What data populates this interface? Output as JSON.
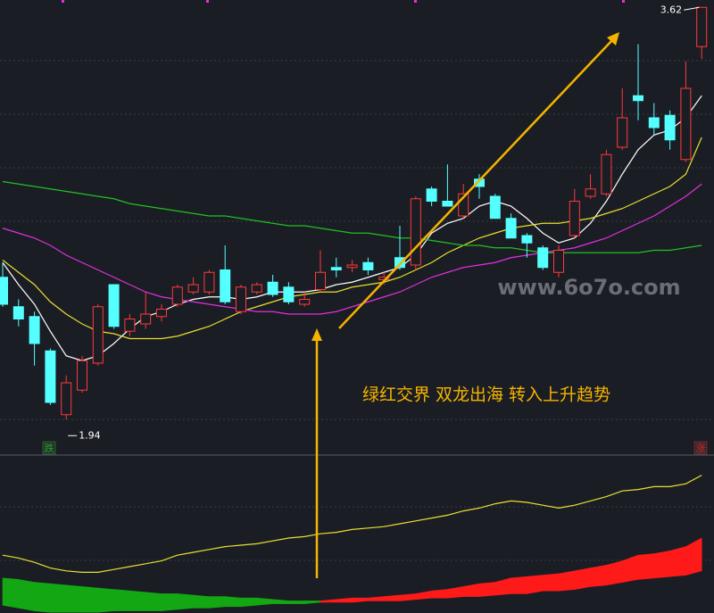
{
  "chart_data": [
    {
      "type": "candlestick",
      "ylim": [
        1.8,
        3.65
      ],
      "up_color": "#ff3a3a",
      "down_color": "#54ffff",
      "open": [
        2.52,
        2.4,
        2.36,
        2.22,
        1.96,
        2.06,
        2.17,
        2.49,
        2.3,
        2.33,
        2.36,
        2.41,
        2.46,
        2.46,
        2.55,
        2.38,
        2.46,
        2.5,
        2.48,
        2.41,
        2.47,
        2.56,
        2.56,
        2.58,
        2.51,
        2.6,
        2.57,
        2.88,
        2.83,
        2.77,
        2.92,
        2.85,
        2.76,
        2.69,
        2.64,
        2.54,
        2.69,
        2.85,
        2.86,
        3.05,
        3.26,
        3.17,
        3.18,
        3.0,
        3.46
      ],
      "high": [
        2.58,
        2.43,
        2.38,
        2.23,
        2.12,
        2.2,
        2.41,
        2.49,
        2.37,
        2.46,
        2.41,
        2.49,
        2.52,
        2.55,
        2.65,
        2.49,
        2.5,
        2.53,
        2.5,
        2.46,
        2.63,
        2.6,
        2.59,
        2.6,
        2.54,
        2.73,
        2.85,
        2.89,
        2.98,
        2.9,
        2.94,
        2.86,
        2.78,
        2.7,
        2.65,
        2.65,
        2.88,
        2.94,
        3.04,
        3.29,
        3.47,
        3.23,
        3.2,
        3.4,
        3.62
      ],
      "low": [
        2.4,
        2.32,
        2.16,
        2.0,
        1.94,
        2.05,
        2.16,
        2.31,
        2.28,
        2.31,
        2.34,
        2.4,
        2.45,
        2.45,
        2.41,
        2.37,
        2.45,
        2.44,
        2.41,
        2.4,
        2.46,
        2.52,
        2.54,
        2.53,
        2.49,
        2.55,
        2.55,
        2.81,
        2.81,
        2.76,
        2.84,
        2.76,
        2.68,
        2.6,
        2.55,
        2.52,
        2.68,
        2.84,
        2.85,
        3.04,
        3.16,
        3.1,
        3.04,
        2.99,
        3.41
      ],
      "close": [
        2.41,
        2.35,
        2.25,
        2.01,
        2.09,
        2.18,
        2.4,
        2.32,
        2.35,
        2.37,
        2.39,
        2.48,
        2.49,
        2.54,
        2.42,
        2.48,
        2.49,
        2.45,
        2.42,
        2.43,
        2.54,
        2.55,
        2.57,
        2.55,
        2.52,
        2.56,
        2.84,
        2.83,
        2.81,
        2.86,
        2.89,
        2.76,
        2.68,
        2.66,
        2.56,
        2.63,
        2.83,
        2.88,
        3.02,
        3.17,
        3.24,
        3.13,
        3.08,
        3.29,
        3.62
      ],
      "high_index": 44,
      "low_index": 4,
      "series": [
        {
          "color": "#ffffff",
          "values": [
            2.58,
            2.49,
            2.41,
            2.3,
            2.2,
            2.18,
            2.2,
            2.25,
            2.31,
            2.36,
            2.38,
            2.41,
            2.43,
            2.44,
            2.44,
            2.43,
            2.44,
            2.46,
            2.46,
            2.46,
            2.47,
            2.49,
            2.5,
            2.52,
            2.54,
            2.56,
            2.61,
            2.7,
            2.74,
            2.76,
            2.81,
            2.83,
            2.81,
            2.76,
            2.7,
            2.66,
            2.68,
            2.74,
            2.83,
            2.94,
            3.04,
            3.1,
            3.12,
            3.17,
            3.26
          ]
        },
        {
          "color": "#e8e030",
          "values": [
            2.59,
            2.54,
            2.49,
            2.42,
            2.37,
            2.33,
            2.3,
            2.29,
            2.27,
            2.27,
            2.27,
            2.28,
            2.3,
            2.32,
            2.35,
            2.38,
            2.4,
            2.42,
            2.44,
            2.45,
            2.46,
            2.46,
            2.48,
            2.49,
            2.5,
            2.52,
            2.55,
            2.58,
            2.62,
            2.65,
            2.68,
            2.7,
            2.72,
            2.73,
            2.74,
            2.74,
            2.75,
            2.76,
            2.78,
            2.8,
            2.83,
            2.86,
            2.89,
            2.94,
            3.09
          ]
        },
        {
          "color": "#e030e0",
          "values": [
            2.72,
            2.7,
            2.68,
            2.65,
            2.61,
            2.58,
            2.55,
            2.52,
            2.49,
            2.46,
            2.44,
            2.43,
            2.42,
            2.41,
            2.4,
            2.39,
            2.38,
            2.38,
            2.37,
            2.37,
            2.37,
            2.38,
            2.4,
            2.42,
            2.44,
            2.46,
            2.49,
            2.52,
            2.54,
            2.56,
            2.57,
            2.58,
            2.6,
            2.61,
            2.62,
            2.63,
            2.64,
            2.66,
            2.68,
            2.71,
            2.74,
            2.77,
            2.81,
            2.85,
            2.9
          ]
        },
        {
          "color": "#22c022",
          "values": [
            2.91,
            2.9,
            2.89,
            2.88,
            2.87,
            2.86,
            2.85,
            2.84,
            2.82,
            2.81,
            2.8,
            2.79,
            2.78,
            2.77,
            2.77,
            2.76,
            2.75,
            2.74,
            2.73,
            2.73,
            2.72,
            2.71,
            2.7,
            2.7,
            2.69,
            2.68,
            2.68,
            2.67,
            2.66,
            2.65,
            2.65,
            2.64,
            2.64,
            2.63,
            2.62,
            2.62,
            2.62,
            2.62,
            2.62,
            2.62,
            2.62,
            2.63,
            2.63,
            2.64,
            2.65
          ]
        }
      ],
      "badges": [
        {
          "text": "跌",
          "color": "#1fa81f"
        },
        {
          "text": "涨",
          "color": "#e02020"
        }
      ],
      "annotation": "绿红交界 双龙出海 转入上升趋势",
      "watermark": "www.6o7o.com"
    },
    {
      "type": "indicator",
      "ylim": [
        -8,
        100
      ],
      "series": [
        {
          "color": "#e8e030",
          "values": [
            33,
            31,
            28,
            24,
            22,
            21,
            21,
            23,
            25,
            27,
            29,
            33,
            35,
            37,
            39,
            40,
            41,
            43,
            45,
            46,
            48,
            49,
            51,
            52,
            53,
            55,
            57,
            59,
            61,
            64,
            66,
            69,
            71,
            70,
            68,
            66,
            68,
            71,
            74,
            78,
            79,
            81,
            81,
            83,
            89
          ]
        }
      ],
      "band": {
        "positive_color": "#ff1a1a",
        "negative_color": "#13a813",
        "upper": [
          17,
          16,
          14,
          13,
          12,
          11,
          10,
          9,
          8,
          7,
          6,
          6,
          5,
          4,
          4,
          3,
          3,
          2,
          1,
          1,
          1,
          2,
          3,
          3,
          4,
          5,
          6,
          8,
          9,
          11,
          13,
          14,
          17,
          18,
          19,
          20,
          22,
          24,
          26,
          29,
          33,
          34,
          36,
          39,
          45
        ],
        "lower": [
          -2,
          -4,
          -6,
          -7,
          -7,
          -7,
          -7,
          -6,
          -6,
          -6,
          -6,
          -5,
          -4,
          -4,
          -3,
          -3,
          -2,
          -1,
          -1,
          -1,
          0,
          0,
          0,
          1,
          1,
          1,
          2,
          3,
          3,
          4,
          4,
          5,
          6,
          6,
          8,
          8,
          9,
          11,
          12,
          14,
          16,
          17,
          18,
          19,
          22
        ]
      }
    }
  ]
}
